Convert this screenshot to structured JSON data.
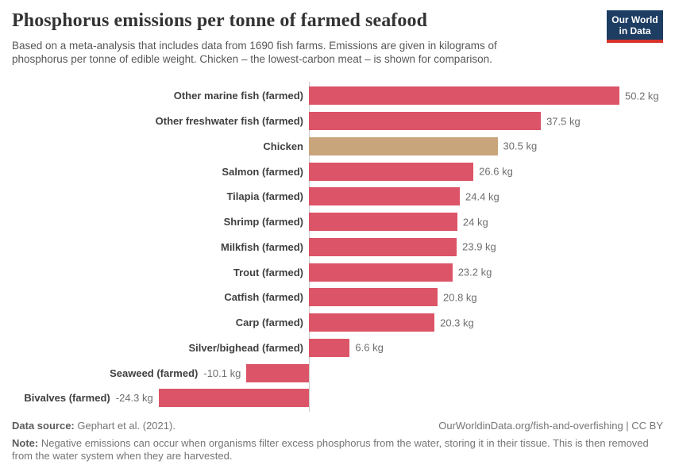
{
  "header": {
    "title": "Phosphorus emissions per tonne of farmed seafood",
    "subtitle_line1": "Based on a meta-analysis that includes data from 1690 fish farms. Emissions are given in kilograms of",
    "subtitle_line2": "phosphorus per tonne of edible weight. Chicken – the lowest-carbon meat – is shown for comparison.",
    "logo_line1": "Our World",
    "logo_line2": "in Data"
  },
  "chart_data": {
    "type": "bar",
    "orientation": "horizontal",
    "title": "Phosphorus emissions per tonne of farmed seafood",
    "unit": "kg",
    "categories": [
      "Other marine fish (farmed)",
      "Other freshwater fish (farmed)",
      "Chicken",
      "Salmon (farmed)",
      "Tilapia (farmed)",
      "Shrimp (farmed)",
      "Milkfish (farmed)",
      "Trout (farmed)",
      "Catfish (farmed)",
      "Carp (farmed)",
      "Silver/bighead (farmed)",
      "Seaweed (farmed)",
      "Bivalves (farmed)"
    ],
    "values": [
      50.2,
      37.5,
      30.5,
      26.6,
      24.4,
      24,
      23.9,
      23.2,
      20.8,
      20.3,
      6.6,
      -10.1,
      -24.3
    ],
    "value_labels": [
      "50.2 kg",
      "37.5 kg",
      "30.5 kg",
      "26.6 kg",
      "24.4 kg",
      "24 kg",
      "23.9 kg",
      "23.2 kg",
      "20.8 kg",
      "20.3 kg",
      "6.6 kg",
      "-10.1 kg",
      "-24.3 kg"
    ],
    "highlight_category": "Chicken",
    "xlim": [
      -24.3,
      50.2
    ],
    "grid": false,
    "legend": "none"
  },
  "colors": {
    "bar": "#dc5467",
    "highlight_bar": "#c9a57c",
    "axis": "#cccccc",
    "logo_bg": "#1d3d63",
    "logo_accent": "#d7332b"
  },
  "footer": {
    "source_label": "Data source:",
    "source_text": " Gephart et al. (2021).",
    "link_text": "OurWorldinData.org/fish-and-overfishing | CC BY",
    "note_label": "Note:",
    "note_text": " Negative emissions can occur when organisms filter excess phosphorus from the water, storing it in their tissue. This is then removed from the water system when they are harvested."
  }
}
